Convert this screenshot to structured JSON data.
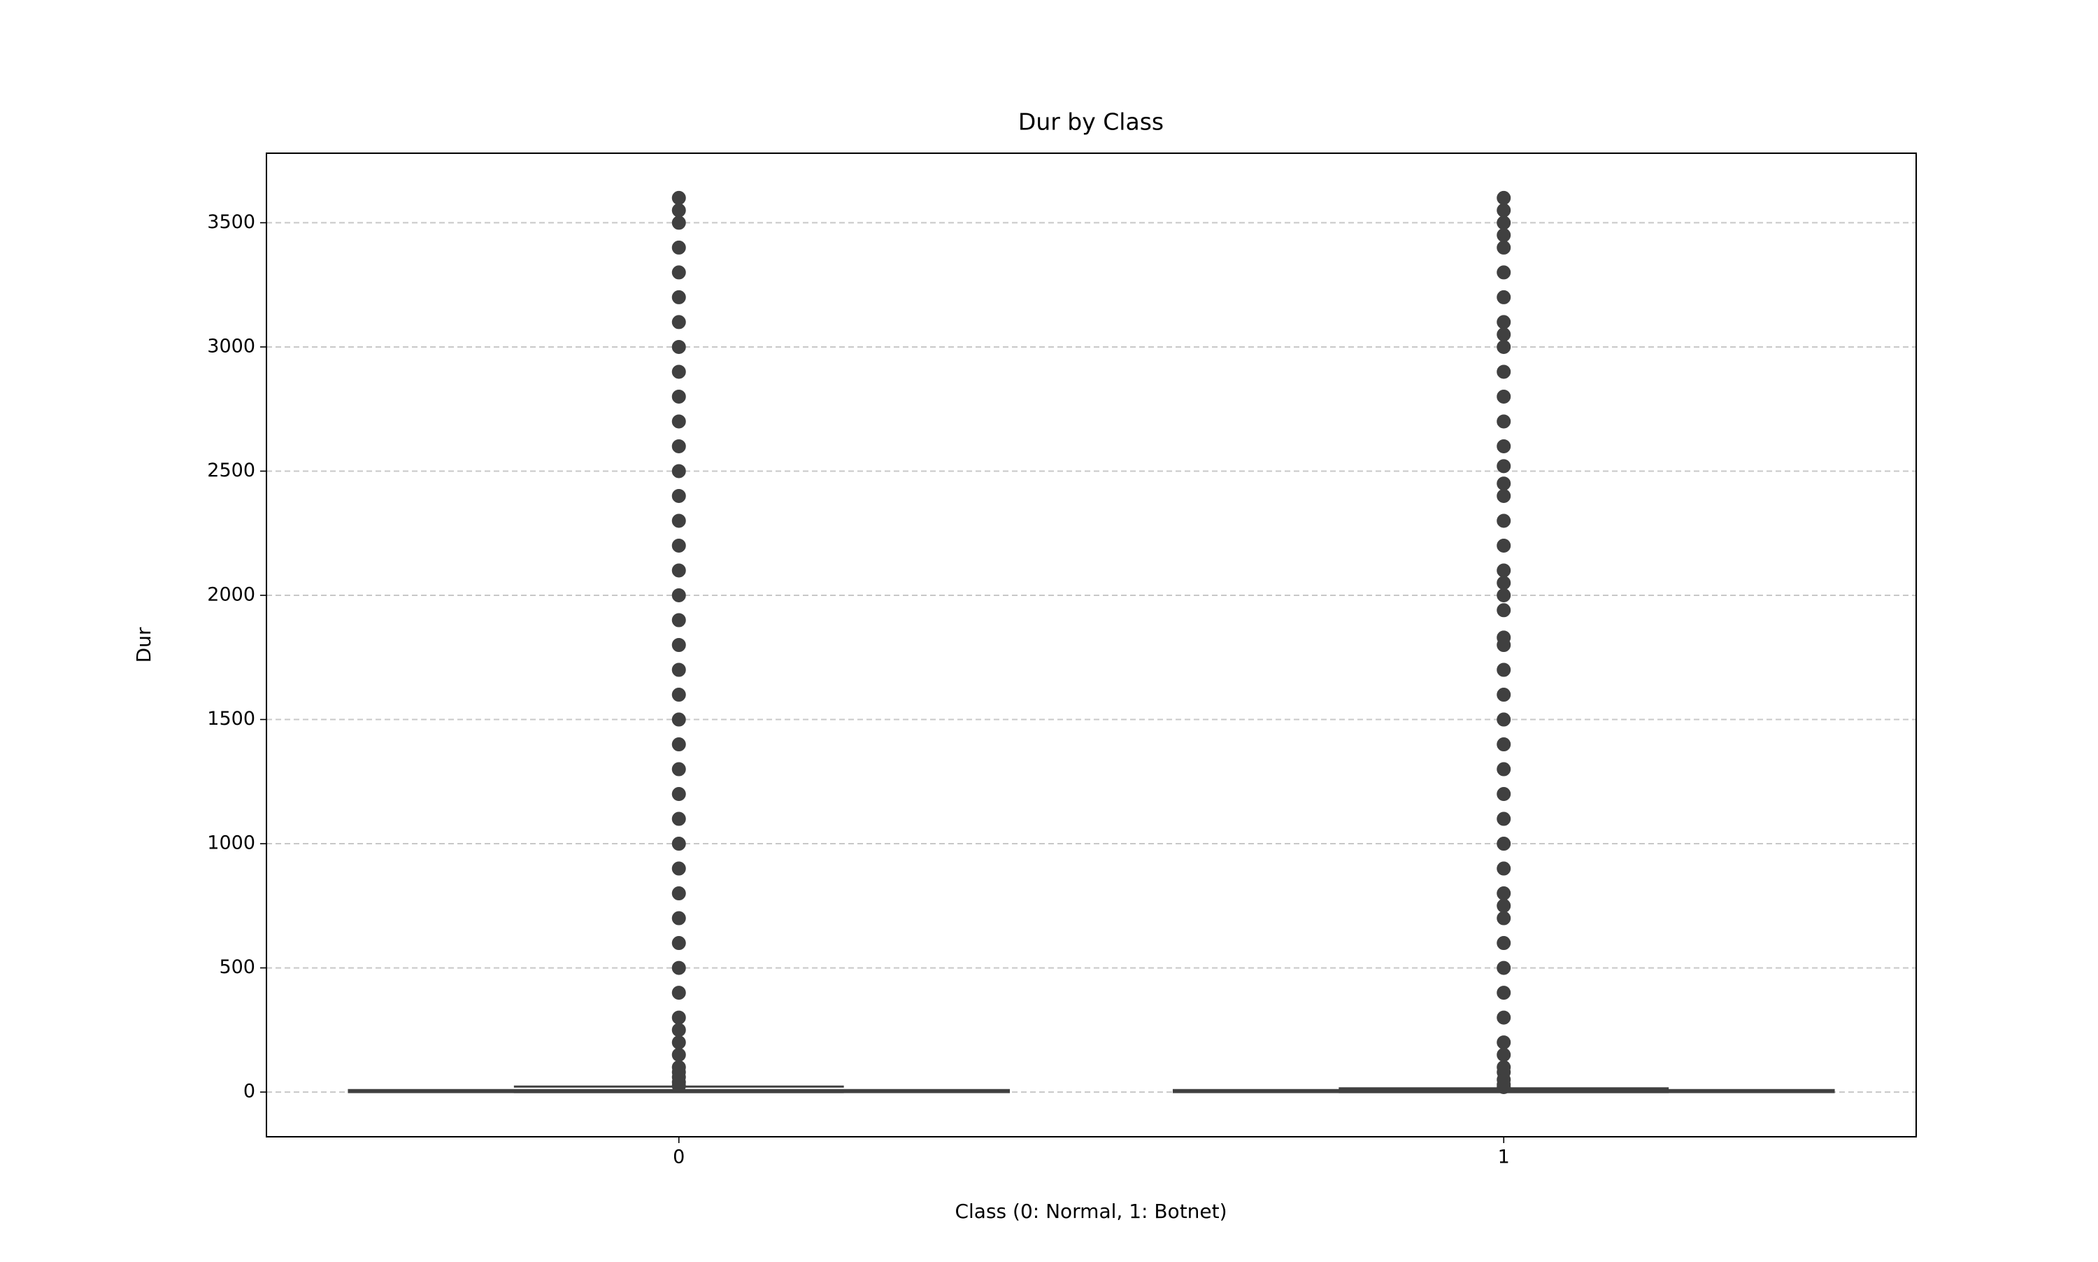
{
  "chart_data": {
    "type": "box",
    "title": "Dur by Class",
    "x_label": "Class (0: Normal, 1: Botnet)",
    "y_label": "Dur",
    "categories": [
      "0",
      "1"
    ],
    "color": "#404040",
    "boxes": [
      {
        "whislo": 0,
        "q1": 0,
        "med": 2,
        "q3": 8,
        "whishi": 22,
        "outliers": [
          25,
          40,
          60,
          80,
          100,
          150,
          200,
          250,
          300,
          400,
          500,
          600,
          700,
          800,
          900,
          1000,
          1100,
          1200,
          1300,
          1400,
          1500,
          1600,
          1700,
          1800,
          1900,
          2000,
          2100,
          2200,
          2300,
          2400,
          2500,
          2600,
          2700,
          2800,
          2900,
          3000,
          3100,
          3200,
          3300,
          3400,
          3500,
          3550,
          3600
        ]
      },
      {
        "whislo": 0,
        "q1": 0,
        "med": 2,
        "q3": 8,
        "whishi": 15,
        "outliers": [
          20,
          30,
          50,
          80,
          100,
          150,
          200,
          300,
          400,
          500,
          600,
          700,
          750,
          800,
          900,
          1000,
          1100,
          1200,
          1300,
          1400,
          1500,
          1600,
          1700,
          1800,
          1830,
          1940,
          2000,
          2050,
          2100,
          2200,
          2300,
          2400,
          2450,
          2520,
          2600,
          2700,
          2800,
          2900,
          3000,
          3050,
          3100,
          3200,
          3300,
          3400,
          3450,
          3500,
          3550,
          3600
        ]
      }
    ],
    "ylim": [
      -180,
      3780
    ],
    "yticks": [
      0,
      500,
      1000,
      1500,
      2000,
      2500,
      3000,
      3500
    ],
    "grid": true
  }
}
